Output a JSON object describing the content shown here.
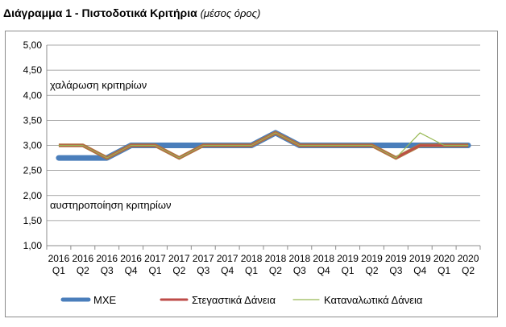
{
  "title": {
    "main": "Διάγραμμα 1 - Πιστοδοτικά Κριτήρια",
    "sub": "(μέσος όρος)"
  },
  "chart_data": {
    "type": "line",
    "title": "Διάγραμμα 1 - Πιστοδοτικά Κριτήρια (μέσος όρος)",
    "xlabel": "",
    "ylabel": "",
    "ylim": [
      1.0,
      5.0
    ],
    "yticks": [
      "1,00",
      "1,50",
      "2,00",
      "2,50",
      "3,00",
      "3,50",
      "4,00",
      "4,50",
      "5,00"
    ],
    "grid": "horizontal",
    "legend_position": "bottom",
    "categories": [
      [
        "2016",
        "Q1"
      ],
      [
        "2016",
        "Q2"
      ],
      [
        "2016",
        "Q3"
      ],
      [
        "2016",
        "Q4"
      ],
      [
        "2017",
        "Q1"
      ],
      [
        "2017",
        "Q2"
      ],
      [
        "2017",
        "Q3"
      ],
      [
        "2017",
        "Q4"
      ],
      [
        "2018",
        "Q1"
      ],
      [
        "2018",
        "Q2"
      ],
      [
        "2018",
        "Q3"
      ],
      [
        "2018",
        "Q4"
      ],
      [
        "2019",
        "Q1"
      ],
      [
        "2019",
        "Q2"
      ],
      [
        "2019",
        "Q3"
      ],
      [
        "2019",
        "Q4"
      ],
      [
        "2020",
        "Q1"
      ],
      [
        "2020",
        "Q2"
      ]
    ],
    "annotations": [
      {
        "text": "χαλάρωση κριτηρίων",
        "y": 4.2
      },
      {
        "text": "αυστηροποίηση κριτηρίων",
        "y": 1.8
      }
    ],
    "series": [
      {
        "name": "ΜΧΕ",
        "color": "#4a7ebb",
        "values": [
          2.75,
          2.75,
          2.75,
          3.0,
          3.0,
          3.0,
          3.0,
          3.0,
          3.0,
          3.25,
          3.0,
          3.0,
          3.0,
          3.0,
          3.0,
          3.0,
          3.0,
          3.0
        ]
      },
      {
        "name": "Στεγαστικά Δάνεια",
        "color": "#be4b48",
        "values": [
          3.0,
          3.0,
          2.75,
          3.0,
          3.0,
          2.75,
          3.0,
          3.0,
          3.0,
          3.25,
          3.0,
          3.0,
          3.0,
          3.0,
          2.75,
          3.0,
          3.0,
          3.0
        ]
      },
      {
        "name": "Καταναλωτικά Δάνεια",
        "color": "#98b954",
        "values": [
          3.0,
          3.0,
          2.75,
          3.0,
          3.0,
          2.75,
          3.0,
          3.0,
          3.0,
          3.25,
          3.0,
          3.0,
          3.0,
          3.0,
          2.75,
          3.25,
          3.0,
          3.0
        ]
      }
    ]
  }
}
